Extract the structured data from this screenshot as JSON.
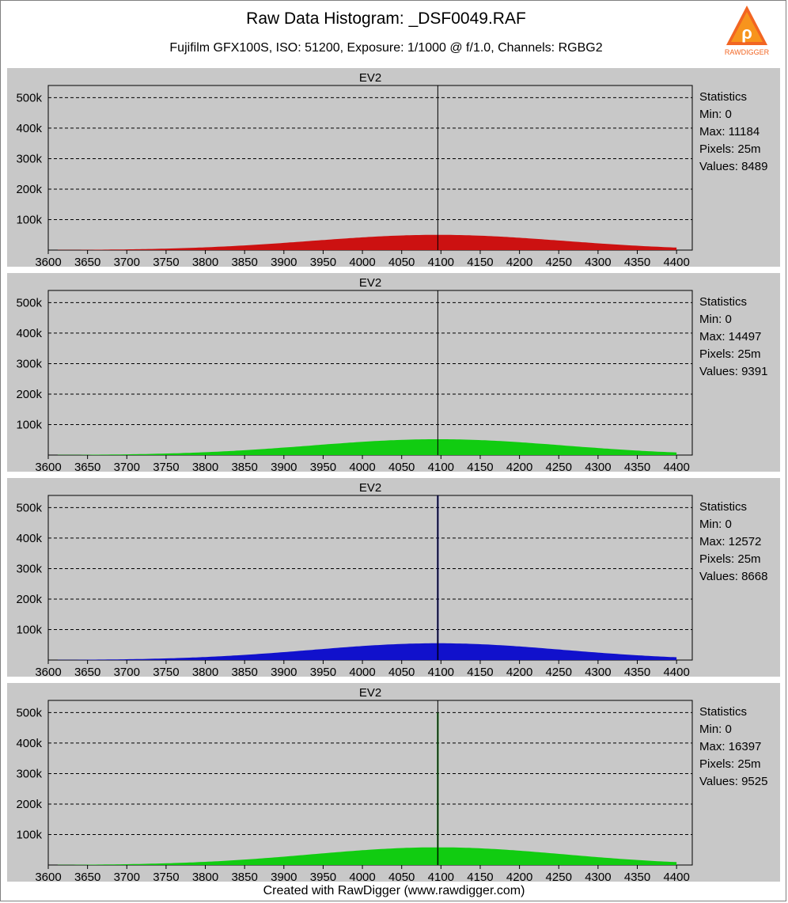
{
  "header": {
    "title": "Raw Data Histogram: _DSF0049.RAF",
    "subtitle": "Fujifilm GFX100S, ISO: 51200, Exposure: 1/1000 @ f/1.0, Channels: RGBG2",
    "logo_text": "RAWDIGGER"
  },
  "footer": {
    "text": "Created with RawDigger (www.rawdigger.com)"
  },
  "colors": {
    "panel_bg": "#c8c8c8",
    "red": "#cc1111",
    "green": "#11cc11",
    "blue": "#1111cc",
    "green2": "#11cc11",
    "spike_blue": "#000080",
    "spike_green": "#008000"
  },
  "chart_data": [
    {
      "type": "area",
      "channel": "R",
      "title": "EV2",
      "x_ticks": [
        3600,
        3650,
        3700,
        3750,
        3800,
        3850,
        3900,
        3950,
        4000,
        4050,
        4100,
        4150,
        4200,
        4250,
        4300,
        4350,
        4400
      ],
      "y_ticks": [
        "100k",
        "200k",
        "300k",
        "400k",
        "500k"
      ],
      "xlim": [
        3600,
        4420
      ],
      "ylim": [
        0,
        540000
      ],
      "grid": true,
      "marker_x": 4096,
      "peak": 50000,
      "spike": null,
      "stats": {
        "heading": "Statistics",
        "min": "Min: 0",
        "max": "Max: 11184",
        "pixels": "Pixels: 25m",
        "values": "Values: 8489"
      }
    },
    {
      "type": "area",
      "channel": "G",
      "title": "EV2",
      "x_ticks": [
        3600,
        3650,
        3700,
        3750,
        3800,
        3850,
        3900,
        3950,
        4000,
        4050,
        4100,
        4150,
        4200,
        4250,
        4300,
        4350,
        4400
      ],
      "y_ticks": [
        "100k",
        "200k",
        "300k",
        "400k",
        "500k"
      ],
      "xlim": [
        3600,
        4420
      ],
      "ylim": [
        0,
        540000
      ],
      "grid": true,
      "marker_x": 4096,
      "peak": 52000,
      "spike": null,
      "stats": {
        "heading": "Statistics",
        "min": "Min: 0",
        "max": "Max: 14497",
        "pixels": "Pixels: 25m",
        "values": "Values: 9391"
      }
    },
    {
      "type": "area",
      "channel": "B",
      "title": "EV2",
      "x_ticks": [
        3600,
        3650,
        3700,
        3750,
        3800,
        3850,
        3900,
        3950,
        4000,
        4050,
        4100,
        4150,
        4200,
        4250,
        4300,
        4350,
        4400
      ],
      "y_ticks": [
        "100k",
        "200k",
        "300k",
        "400k",
        "500k"
      ],
      "xlim": [
        3600,
        4420
      ],
      "ylim": [
        0,
        540000
      ],
      "grid": true,
      "marker_x": 4096,
      "peak": 55000,
      "spike": {
        "x": 4096,
        "value": 540000
      },
      "stats": {
        "heading": "Statistics",
        "min": "Min: 0",
        "max": "Max: 12572",
        "pixels": "Pixels: 25m",
        "values": "Values: 8668"
      }
    },
    {
      "type": "area",
      "channel": "G2",
      "title": "EV2",
      "x_ticks": [
        3600,
        3650,
        3700,
        3750,
        3800,
        3850,
        3900,
        3950,
        4000,
        4050,
        4100,
        4150,
        4200,
        4250,
        4300,
        4350,
        4400
      ],
      "y_ticks": [
        "100k",
        "200k",
        "300k",
        "400k",
        "500k"
      ],
      "xlim": [
        3600,
        4420
      ],
      "ylim": [
        0,
        540000
      ],
      "grid": true,
      "marker_x": 4096,
      "peak": 58000,
      "spike": {
        "x": 4096,
        "value": 500000
      },
      "stats": {
        "heading": "Statistics",
        "min": "Min: 0",
        "max": "Max: 16397",
        "pixels": "Pixels: 25m",
        "values": "Values: 9525"
      }
    }
  ]
}
